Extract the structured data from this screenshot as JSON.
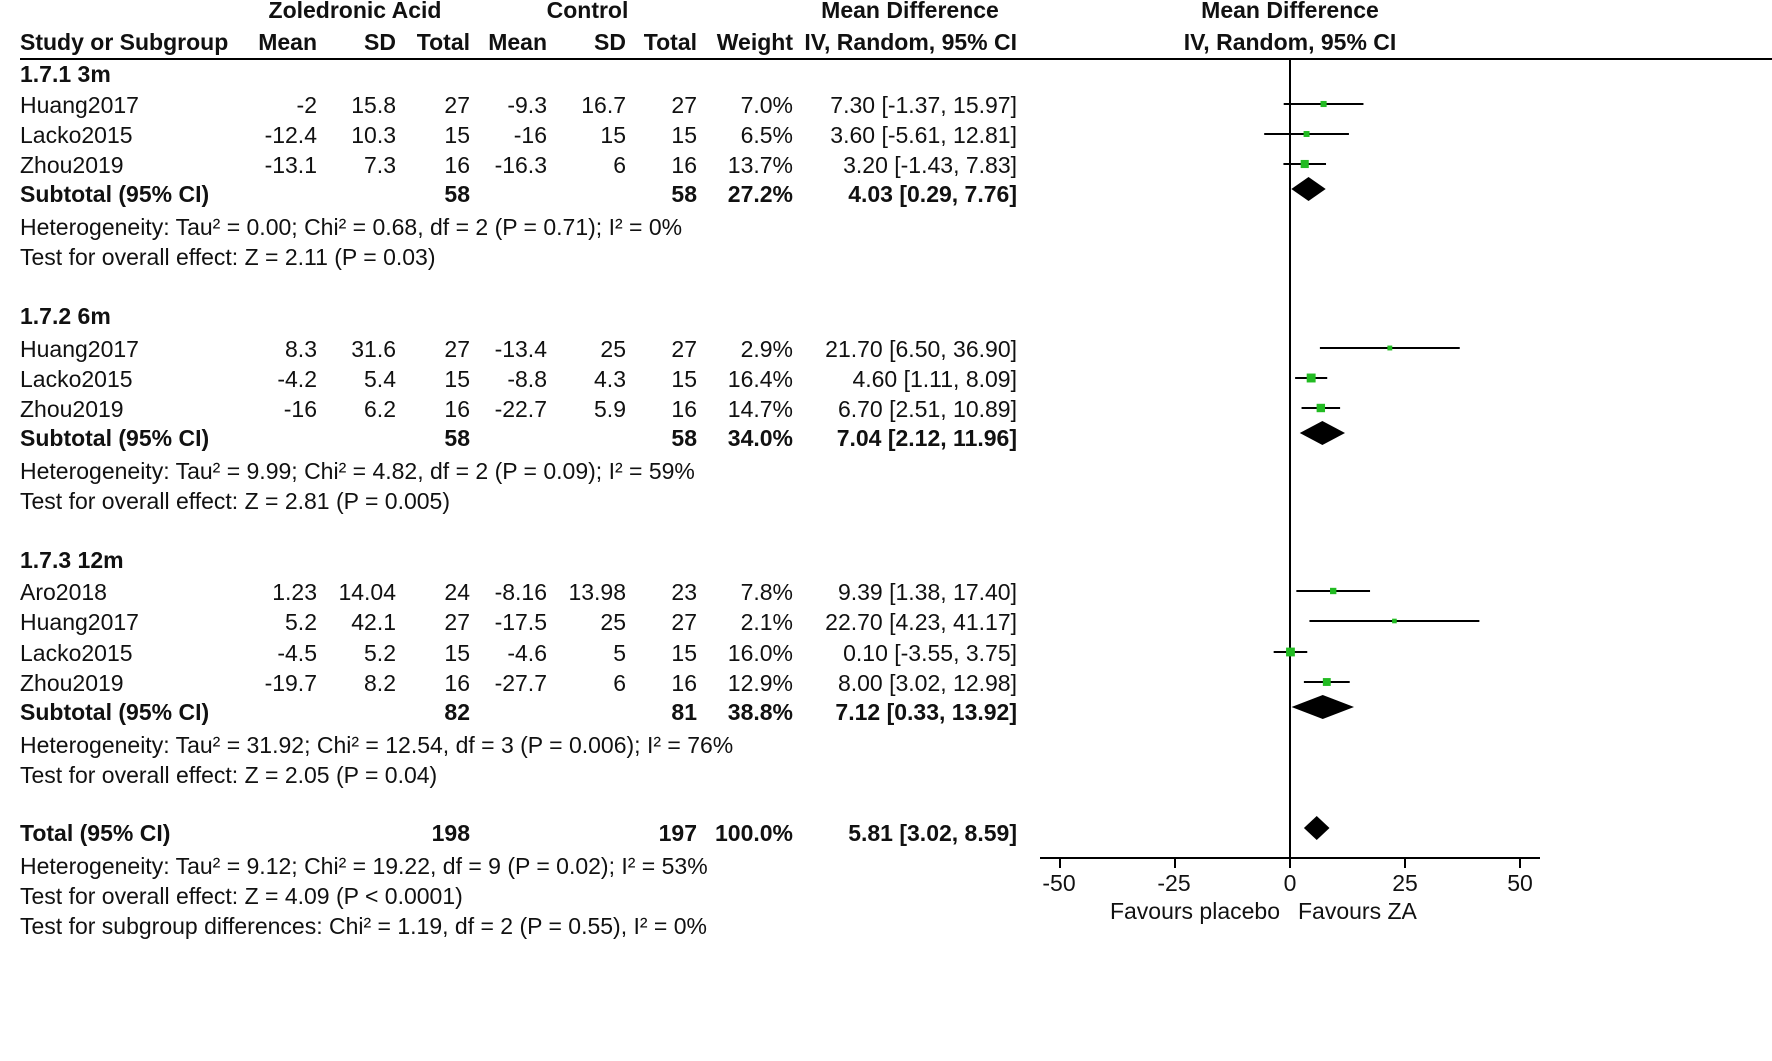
{
  "header": {
    "group1": "Zoledronic Acid",
    "group2": "Control",
    "md_title": "Mean Difference",
    "md_method": "IV, Random, 95% CI",
    "plot_title": "Mean Difference",
    "plot_method": "IV, Random, 95% CI",
    "cols": {
      "study": "Study or Subgroup",
      "mean1": "Mean",
      "sd1": "SD",
      "total1": "Total",
      "mean2": "Mean",
      "sd2": "SD",
      "total2": "Total",
      "weight": "Weight"
    }
  },
  "subgroups": [
    {
      "label": "1.7.1 3m",
      "studies": [
        {
          "study": "Huang2017",
          "mean1": "-2",
          "sd1": "15.8",
          "total1": "27",
          "mean2": "-9.3",
          "sd2": "16.7",
          "total2": "27",
          "weight": "7.0%",
          "ci": "7.30 [-1.37, 15.97]"
        },
        {
          "study": "Lacko2015",
          "mean1": "-12.4",
          "sd1": "10.3",
          "total1": "15",
          "mean2": "-16",
          "sd2": "15",
          "total2": "15",
          "weight": "6.5%",
          "ci": "3.60 [-5.61, 12.81]"
        },
        {
          "study": "Zhou2019",
          "mean1": "-13.1",
          "sd1": "7.3",
          "total1": "16",
          "mean2": "-16.3",
          "sd2": "6",
          "total2": "16",
          "weight": "13.7%",
          "ci": "3.20 [-1.43, 7.83]"
        }
      ],
      "subtotal": {
        "label": "Subtotal (95% CI)",
        "total1": "58",
        "total2": "58",
        "weight": "27.2%",
        "ci": "4.03 [0.29, 7.76]"
      },
      "heterogeneity": "Heterogeneity: Tau² = 0.00; Chi² = 0.68, df = 2 (P = 0.71); I² = 0%",
      "overall": "Test for overall effect: Z = 2.11 (P = 0.03)"
    },
    {
      "label": "1.7.2 6m",
      "studies": [
        {
          "study": "Huang2017",
          "mean1": "8.3",
          "sd1": "31.6",
          "total1": "27",
          "mean2": "-13.4",
          "sd2": "25",
          "total2": "27",
          "weight": "2.9%",
          "ci": "21.70 [6.50, 36.90]"
        },
        {
          "study": "Lacko2015",
          "mean1": "-4.2",
          "sd1": "5.4",
          "total1": "15",
          "mean2": "-8.8",
          "sd2": "4.3",
          "total2": "15",
          "weight": "16.4%",
          "ci": "4.60 [1.11, 8.09]"
        },
        {
          "study": "Zhou2019",
          "mean1": "-16",
          "sd1": "6.2",
          "total1": "16",
          "mean2": "-22.7",
          "sd2": "5.9",
          "total2": "16",
          "weight": "14.7%",
          "ci": "6.70 [2.51, 10.89]"
        }
      ],
      "subtotal": {
        "label": "Subtotal (95% CI)",
        "total1": "58",
        "total2": "58",
        "weight": "34.0%",
        "ci": "7.04 [2.12, 11.96]"
      },
      "heterogeneity": "Heterogeneity: Tau² = 9.99; Chi² = 4.82, df = 2 (P = 0.09); I² = 59%",
      "overall": "Test for overall effect: Z = 2.81 (P = 0.005)"
    },
    {
      "label": "1.7.3 12m",
      "studies": [
        {
          "study": "Aro2018",
          "mean1": "1.23",
          "sd1": "14.04",
          "total1": "24",
          "mean2": "-8.16",
          "sd2": "13.98",
          "total2": "23",
          "weight": "7.8%",
          "ci": "9.39 [1.38, 17.40]"
        },
        {
          "study": "Huang2017",
          "mean1": "5.2",
          "sd1": "42.1",
          "total1": "27",
          "mean2": "-17.5",
          "sd2": "25",
          "total2": "27",
          "weight": "2.1%",
          "ci": "22.70 [4.23, 41.17]"
        },
        {
          "study": "Lacko2015",
          "mean1": "-4.5",
          "sd1": "5.2",
          "total1": "15",
          "mean2": "-4.6",
          "sd2": "5",
          "total2": "15",
          "weight": "16.0%",
          "ci": "0.10 [-3.55, 3.75]"
        },
        {
          "study": "Zhou2019",
          "mean1": "-19.7",
          "sd1": "8.2",
          "total1": "16",
          "mean2": "-27.7",
          "sd2": "6",
          "total2": "16",
          "weight": "12.9%",
          "ci": "8.00 [3.02, 12.98]"
        }
      ],
      "subtotal": {
        "label": "Subtotal (95% CI)",
        "total1": "82",
        "total2": "81",
        "weight": "38.8%",
        "ci": "7.12 [0.33, 13.92]"
      },
      "heterogeneity": "Heterogeneity: Tau² = 31.92; Chi² = 12.54, df = 3 (P = 0.006); I² = 76%",
      "overall": "Test for overall effect: Z = 2.05 (P = 0.04)"
    }
  ],
  "total": {
    "label": "Total (95% CI)",
    "total1": "198",
    "total2": "197",
    "weight": "100.0%",
    "ci": "5.81 [3.02, 8.59]",
    "heterogeneity": "Heterogeneity: Tau² = 9.12; Chi² = 19.22, df = 9 (P = 0.02); I² = 53%",
    "overall": "Test for overall effect: Z = 4.09 (P < 0.0001)",
    "subgroup_diff": "Test for subgroup differences: Chi² = 1.19, df = 2 (P = 0.55), I² = 0%"
  },
  "axis": {
    "ticks": [
      -50,
      -25,
      0,
      25,
      50
    ],
    "tick_labels": [
      "-50",
      "-25",
      "0",
      "25",
      "50"
    ],
    "favours_left": "Favours placebo",
    "favours_right": "Favours ZA"
  },
  "colors": {
    "square": "#22bb22",
    "diamond": "#000000",
    "line": "#000000"
  },
  "chart_data": {
    "type": "forest",
    "title": "Mean Difference",
    "xlabel": "IV, Random, 95% CI",
    "xlim": [
      -50,
      50
    ],
    "null_line": 0,
    "studies": [
      {
        "group": "1.7.1 3m",
        "name": "Huang2017",
        "md": 7.3,
        "lo": -1.37,
        "hi": 15.97,
        "weight": 7.0
      },
      {
        "group": "1.7.1 3m",
        "name": "Lacko2015",
        "md": 3.6,
        "lo": -5.61,
        "hi": 12.81,
        "weight": 6.5
      },
      {
        "group": "1.7.1 3m",
        "name": "Zhou2019",
        "md": 3.2,
        "lo": -1.43,
        "hi": 7.83,
        "weight": 13.7
      },
      {
        "group": "1.7.2 6m",
        "name": "Huang2017",
        "md": 21.7,
        "lo": 6.5,
        "hi": 36.9,
        "weight": 2.9
      },
      {
        "group": "1.7.2 6m",
        "name": "Lacko2015",
        "md": 4.6,
        "lo": 1.11,
        "hi": 8.09,
        "weight": 16.4
      },
      {
        "group": "1.7.2 6m",
        "name": "Zhou2019",
        "md": 6.7,
        "lo": 2.51,
        "hi": 10.89,
        "weight": 14.7
      },
      {
        "group": "1.7.3 12m",
        "name": "Aro2018",
        "md": 9.39,
        "lo": 1.38,
        "hi": 17.4,
        "weight": 7.8
      },
      {
        "group": "1.7.3 12m",
        "name": "Huang2017",
        "md": 22.7,
        "lo": 4.23,
        "hi": 41.17,
        "weight": 2.1
      },
      {
        "group": "1.7.3 12m",
        "name": "Lacko2015",
        "md": 0.1,
        "lo": -3.55,
        "hi": 3.75,
        "weight": 16.0
      },
      {
        "group": "1.7.3 12m",
        "name": "Zhou2019",
        "md": 8.0,
        "lo": 3.02,
        "hi": 12.98,
        "weight": 12.9
      }
    ],
    "subtotals": [
      {
        "group": "1.7.1 3m",
        "md": 4.03,
        "lo": 0.29,
        "hi": 7.76
      },
      {
        "group": "1.7.2 6m",
        "md": 7.04,
        "lo": 2.12,
        "hi": 11.96
      },
      {
        "group": "1.7.3 12m",
        "md": 7.12,
        "lo": 0.33,
        "hi": 13.92
      }
    ],
    "overall": {
      "md": 5.81,
      "lo": 3.02,
      "hi": 8.59
    }
  }
}
